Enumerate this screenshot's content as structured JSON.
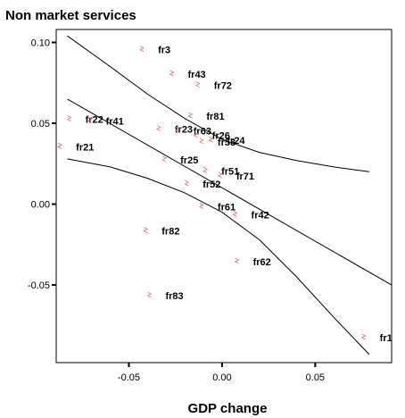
{
  "chart_data": {
    "type": "scatter",
    "title": "Non market services",
    "xlabel": "GDP change",
    "ylabel": "",
    "xlim": [
      -0.089,
      0.091
    ],
    "ylim": [
      -0.098,
      0.108
    ],
    "xticks": [
      -0.05,
      0.0,
      0.05
    ],
    "xtick_labels": [
      "-0.05",
      "0.00",
      "0.05"
    ],
    "yticks": [
      0.1,
      0.05,
      0.0,
      -0.05
    ],
    "ytick_labels": [
      "0.10",
      "0.05",
      "0.00",
      "-0.05"
    ],
    "grid": false,
    "legend": "none",
    "marker_color": "#e07070",
    "points": [
      {
        "label": "fr3",
        "x": -0.043,
        "y": 0.096
      },
      {
        "label": "fr43",
        "x": -0.027,
        "y": 0.081
      },
      {
        "label": "fr72",
        "x": -0.013,
        "y": 0.074
      },
      {
        "label": "fr22",
        "x": -0.082,
        "y": 0.053
      },
      {
        "label": "fr41",
        "x": -0.071,
        "y": 0.052
      },
      {
        "label": "fr23",
        "x": -0.034,
        "y": 0.047
      },
      {
        "label": "fr81",
        "x": -0.017,
        "y": 0.055
      },
      {
        "label": "fr63",
        "x": -0.024,
        "y": 0.046
      },
      {
        "label": "fr53",
        "x": -0.011,
        "y": 0.039
      },
      {
        "label": "fr24",
        "x": -0.006,
        "y": 0.04
      },
      {
        "label": "fr26",
        "x": -0.014,
        "y": 0.043
      },
      {
        "label": "fr21",
        "x": -0.087,
        "y": 0.036
      },
      {
        "label": "fr25",
        "x": -0.031,
        "y": 0.028
      },
      {
        "label": "fr51",
        "x": -0.009,
        "y": 0.021
      },
      {
        "label": "fr71",
        "x": -0.001,
        "y": 0.018
      },
      {
        "label": "fr52",
        "x": -0.019,
        "y": 0.013
      },
      {
        "label": "fr61",
        "x": -0.011,
        "y": -0.001
      },
      {
        "label": "fr42",
        "x": 0.007,
        "y": -0.006
      },
      {
        "label": "fr82",
        "x": -0.041,
        "y": -0.016
      },
      {
        "label": "fr62",
        "x": 0.008,
        "y": -0.035
      },
      {
        "label": "fr83",
        "x": -0.039,
        "y": -0.056
      },
      {
        "label": "fr1",
        "x": 0.076,
        "y": -0.082
      }
    ],
    "fit_line": {
      "x": [
        -0.083,
        0.091
      ],
      "y": [
        0.065,
        -0.05
      ]
    },
    "upper_band": {
      "x": [
        -0.083,
        -0.06,
        -0.04,
        -0.02,
        0.0,
        0.02,
        0.04,
        0.06,
        0.079
      ],
      "y": [
        0.104,
        0.085,
        0.068,
        0.053,
        0.04,
        0.032,
        0.027,
        0.023,
        0.02
      ]
    },
    "lower_band": {
      "x": [
        -0.083,
        -0.06,
        -0.04,
        -0.02,
        0.0,
        0.02,
        0.04,
        0.06,
        0.079
      ],
      "y": [
        0.028,
        0.023,
        0.016,
        0.007,
        -0.005,
        -0.022,
        -0.045,
        -0.07,
        -0.093
      ]
    }
  }
}
